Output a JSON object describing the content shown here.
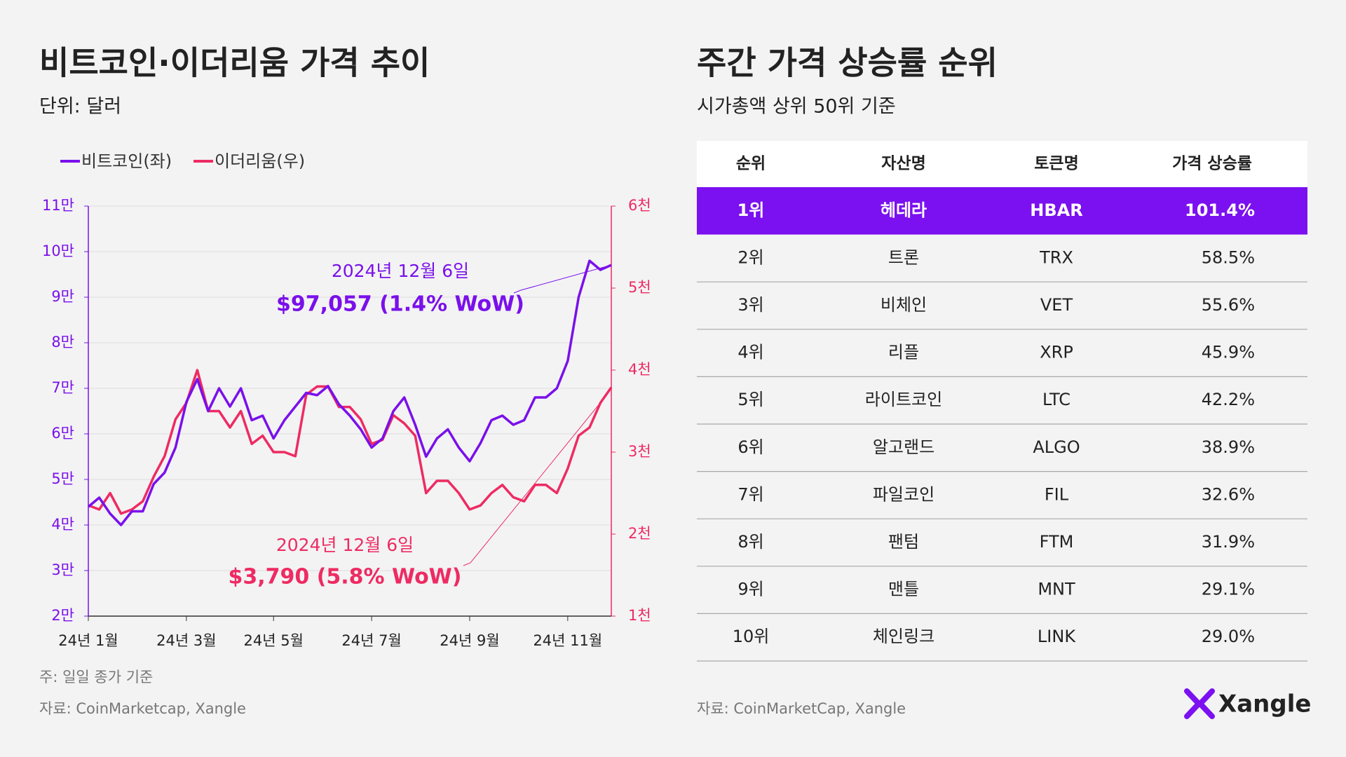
{
  "chart_data": {
    "type": "line",
    "title": "비트코인·이더리움 가격 추이",
    "subtitle": "단위: 달러",
    "categories": [
      "24년 1월",
      null,
      null,
      null,
      null,
      null,
      null,
      null,
      null,
      "24년 3월",
      null,
      null,
      null,
      null,
      null,
      null,
      null,
      "24년 5월",
      null,
      null,
      null,
      null,
      null,
      null,
      null,
      null,
      "24년 7월",
      null,
      null,
      null,
      null,
      null,
      null,
      null,
      null,
      "24년 9월",
      null,
      null,
      null,
      null,
      null,
      null,
      null,
      null,
      "24년 11월",
      null,
      null,
      null,
      null
    ],
    "series": [
      {
        "name": "비트코인(좌)",
        "color": "#7a10ea",
        "axis": "y",
        "values": [
          44000,
          46000,
          42500,
          40000,
          43000,
          43000,
          49000,
          51500,
          57000,
          67000,
          72000,
          65000,
          70000,
          66000,
          70000,
          63000,
          64000,
          59000,
          63000,
          66000,
          69000,
          68500,
          70500,
          66500,
          64000,
          61000,
          57000,
          59000,
          65000,
          68000,
          62000,
          55000,
          59000,
          61000,
          57000,
          54000,
          58000,
          63000,
          64000,
          62000,
          63000,
          68000,
          68000,
          70000,
          76000,
          90000,
          98000,
          96000,
          97057
        ]
      },
      {
        "name": "이더리움(우)",
        "color": "#ee2b62",
        "axis": "y2",
        "values": [
          2350,
          2300,
          2500,
          2250,
          2300,
          2400,
          2700,
          2950,
          3400,
          3600,
          4000,
          3500,
          3500,
          3300,
          3500,
          3100,
          3200,
          3000,
          3000,
          2950,
          3700,
          3800,
          3800,
          3550,
          3550,
          3400,
          3100,
          3150,
          3450,
          3350,
          3200,
          2500,
          2650,
          2650,
          2500,
          2300,
          2350,
          2500,
          2600,
          2450,
          2400,
          2600,
          2600,
          2500,
          2800,
          3200,
          3300,
          3600,
          3790
        ]
      }
    ],
    "ylim": [
      20000,
      110000
    ],
    "yticks": [
      {
        "value": 20000,
        "label": "2만"
      },
      {
        "value": 30000,
        "label": "3만"
      },
      {
        "value": 40000,
        "label": "4만"
      },
      {
        "value": 50000,
        "label": "5만"
      },
      {
        "value": 60000,
        "label": "6만"
      },
      {
        "value": 70000,
        "label": "7만"
      },
      {
        "value": 80000,
        "label": "8만"
      },
      {
        "value": 90000,
        "label": "9만"
      },
      {
        "value": 100000,
        "label": "10만"
      },
      {
        "value": 110000,
        "label": "11만"
      }
    ],
    "y2lim": [
      1000,
      6000
    ],
    "y2ticks": [
      {
        "value": 1000,
        "label": "1천"
      },
      {
        "value": 2000,
        "label": "2천"
      },
      {
        "value": 3000,
        "label": "3천"
      },
      {
        "value": 4000,
        "label": "4천"
      },
      {
        "value": 5000,
        "label": "5천"
      },
      {
        "value": 6000,
        "label": "6천"
      }
    ],
    "grid": true,
    "annotations": [
      {
        "date": "2024년 12월 6일",
        "text": "$97,057 (1.4% WoW)",
        "color": "#7a10ea"
      },
      {
        "date": "2024년 12월 6일",
        "text": "$3,790 (5.8% WoW)",
        "color": "#ee2b62"
      }
    ],
    "note": "주: 일일 종가 기준",
    "source": "자료: CoinMarketcap, Xangle"
  },
  "table": {
    "title": "주간 가격 상승률 순위",
    "subtitle": "시가총액 상위 50위 기준",
    "columns": [
      "순위",
      "자산명",
      "토큰명",
      "가격 상승률"
    ],
    "rows": [
      [
        "1위",
        "헤데라",
        "HBAR",
        "101.4%"
      ],
      [
        "2위",
        "트론",
        "TRX",
        "58.5%"
      ],
      [
        "3위",
        "비체인",
        "VET",
        "55.6%"
      ],
      [
        "4위",
        "리플",
        "XRP",
        "45.9%"
      ],
      [
        "5위",
        "라이트코인",
        "LTC",
        "42.2%"
      ],
      [
        "6위",
        "알고랜드",
        "ALGO",
        "38.9%"
      ],
      [
        "7위",
        "파일코인",
        "FIL",
        "32.6%"
      ],
      [
        "8위",
        "팬텀",
        "FTM",
        "31.9%"
      ],
      [
        "9위",
        "맨틀",
        "MNT",
        "29.1%"
      ],
      [
        "10위",
        "체인링크",
        "LINK",
        "29.0%"
      ]
    ],
    "highlight_color": "#7b10f0",
    "source": "자료: CoinMarketCap, Xangle"
  },
  "logo": "Xangle"
}
